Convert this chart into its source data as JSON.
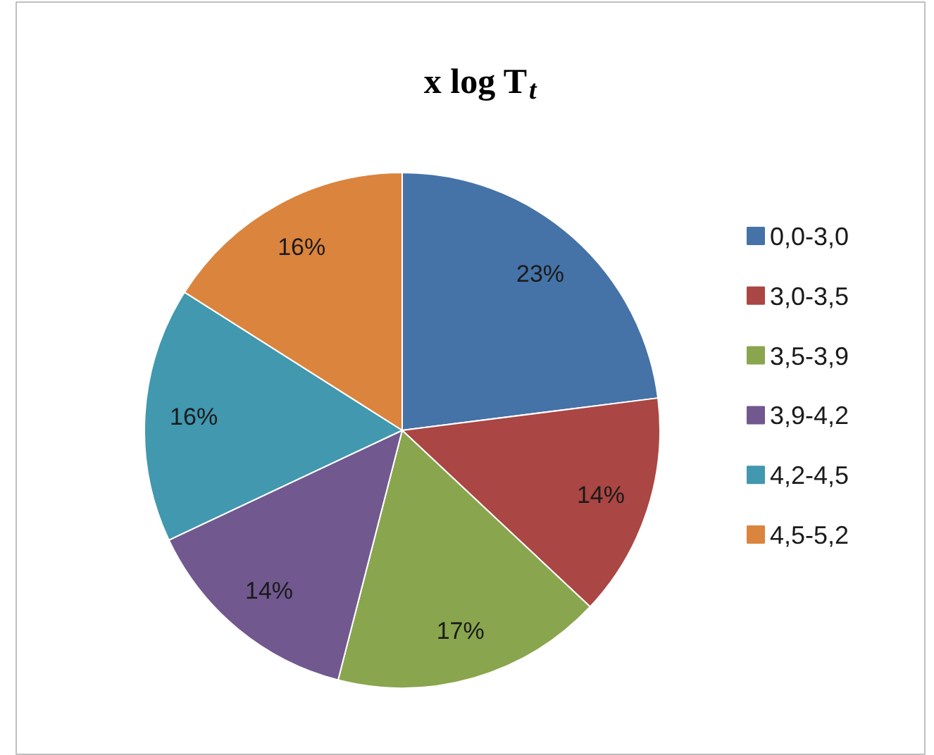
{
  "chart_data": {
    "type": "pie",
    "title": "x log T$_{t}$",
    "categories": [
      "0,0-3,0",
      "3,0-3,5",
      "3,5-3,9",
      "3,9-4,2",
      "4,2-4,5",
      "4,5-5,2"
    ],
    "values": [
      23,
      14,
      17,
      14,
      16,
      16
    ],
    "value_labels": [
      "23%",
      "14%",
      "17%",
      "14%",
      "16%",
      "16%"
    ],
    "colors": [
      "#4572a7",
      "#aa4643",
      "#89a54e",
      "#71588f",
      "#4198af",
      "#db843d"
    ],
    "legend": "right"
  }
}
